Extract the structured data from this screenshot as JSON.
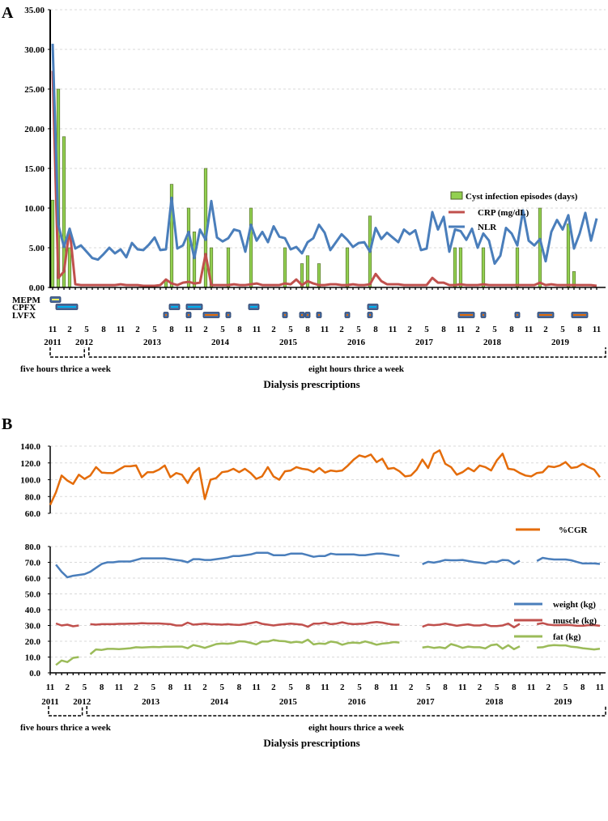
{
  "chart_data": [
    {
      "panel_label": "A",
      "type": "bar+line",
      "ylim": [
        0,
        35
      ],
      "yticks": [
        "0.00",
        "5.00",
        "10.00",
        "15.00",
        "20.00",
        "25.00",
        "30.00",
        "35.00"
      ],
      "x_start": "11/2011",
      "months": 97,
      "xtick_labels": [
        "11",
        "2",
        "5",
        "8",
        "11",
        "2",
        "5",
        "8",
        "11",
        "2",
        "5",
        "8",
        "11",
        "2",
        "5",
        "8",
        "11",
        "2",
        "5",
        "8",
        "11",
        "2",
        "5",
        "8",
        "11",
        "2",
        "5",
        "8",
        "11",
        "2",
        "5",
        "8",
        "11"
      ],
      "year_labels": [
        "2011",
        "2012",
        "2013",
        "2014",
        "2015",
        "2016",
        "2017",
        "2018",
        "2019"
      ],
      "legend": {
        "bars": "Cyst infection episodes (days)",
        "crp": "CRP (mg/dL)",
        "nlr": "NLR"
      },
      "colors": {
        "bars": "#92d050",
        "crp": "#c0504d",
        "nlr": "#4a7ebb"
      },
      "cyst_episodes": [
        [
          0,
          11
        ],
        [
          1,
          25
        ],
        [
          2,
          19
        ],
        [
          3,
          5
        ],
        [
          20,
          1
        ],
        [
          21,
          13
        ],
        [
          24,
          10
        ],
        [
          25,
          7
        ],
        [
          27,
          15
        ],
        [
          28,
          5
        ],
        [
          31,
          5
        ],
        [
          35,
          10
        ],
        [
          41,
          5
        ],
        [
          44,
          3
        ],
        [
          45,
          4
        ],
        [
          47,
          3
        ],
        [
          52,
          5
        ],
        [
          56,
          9
        ],
        [
          71,
          5
        ],
        [
          72,
          5
        ],
        [
          76,
          5
        ],
        [
          82,
          5
        ],
        [
          86,
          10
        ],
        [
          91,
          8
        ],
        [
          92,
          2
        ]
      ],
      "crp": [
        27.3,
        1.2,
        2.0,
        7.4,
        0.4,
        0.3,
        0.3,
        0.3,
        0.3,
        0.3,
        0.3,
        0.3,
        0.4,
        0.3,
        0.3,
        0.3,
        0.2,
        0.2,
        0.2,
        0.3,
        1.0,
        0.5,
        0.3,
        0.6,
        0.7,
        0.5,
        0.6,
        4.2,
        0.3,
        0.3,
        0.3,
        0.3,
        0.4,
        0.3,
        0.3,
        0.4,
        0.5,
        0.3,
        0.3,
        0.3,
        0.3,
        0.5,
        0.4,
        1.0,
        0.3,
        0.8,
        0.5,
        0.3,
        0.3,
        0.4,
        0.4,
        0.3,
        0.3,
        0.4,
        0.3,
        0.3,
        0.4,
        1.7,
        0.8,
        0.4,
        0.4,
        0.4,
        0.3,
        0.3,
        0.3,
        0.3,
        0.3,
        1.2,
        0.6,
        0.6,
        0.3,
        0.3,
        0.4,
        0.3,
        0.3,
        0.3,
        0.4,
        0.3,
        0.3,
        0.3,
        0.3,
        0.3,
        0.3,
        0.3,
        0.3,
        0.3,
        0.6,
        0.3,
        0.4,
        0.3,
        0.3,
        0.3,
        0.3,
        0.3,
        0.3,
        0.3,
        0.2
      ],
      "nlr": [
        30.7,
        7.9,
        5.1,
        7.4,
        4.9,
        5.3,
        4.5,
        3.7,
        3.5,
        4.2,
        5,
        4.3,
        4.8,
        3.8,
        5.6,
        4.8,
        4.7,
        5.4,
        6.3,
        4.7,
        4.8,
        11.3,
        4.9,
        5.3,
        7.0,
        3.7,
        7.3,
        6.0,
        10.9,
        6.3,
        5.8,
        6.2,
        7.3,
        7.1,
        4.5,
        7.9,
        5.9,
        7.0,
        5.7,
        7.7,
        6.4,
        6.2,
        4.8,
        5.1,
        4.3,
        5.7,
        6.2,
        7.9,
        6.9,
        4.7,
        5.7,
        6.7,
        6.0,
        5.1,
        5.6,
        5.7,
        4.5,
        7.5,
        6.1,
        6.9,
        6.3,
        5.7,
        7.3,
        6.7,
        7.2,
        4.7,
        4.9,
        9.5,
        7.3,
        8.9,
        4.5,
        7.3,
        7.1,
        6.0,
        7.4,
        5.0,
        6.8,
        5.9,
        3.0,
        4.0,
        7.5,
        6.8,
        5.3,
        9.7,
        5.9,
        5.3,
        6.1,
        3.3,
        7.0,
        8.5,
        7.3,
        9.1,
        4.9,
        6.8,
        9.4,
        5.9,
        8.7
      ],
      "treatments": {
        "labels": [
          "MEPM",
          "CPFX",
          "LVFX"
        ],
        "colors": [
          "#ffff66",
          "#00b0f0",
          "#e46c0a"
        ],
        "periods": [
          [
            0,
            0,
            1
          ],
          [
            1,
            1,
            4
          ],
          [
            1,
            21,
            22
          ],
          [
            1,
            24,
            26
          ],
          [
            1,
            35,
            36
          ],
          [
            1,
            56,
            57
          ],
          [
            2,
            20,
            20
          ],
          [
            2,
            24,
            24
          ],
          [
            2,
            27,
            29
          ],
          [
            2,
            31,
            31
          ],
          [
            2,
            41,
            41
          ],
          [
            2,
            44,
            44
          ],
          [
            2,
            45,
            45
          ],
          [
            2,
            47,
            47
          ],
          [
            2,
            52,
            52
          ],
          [
            2,
            56,
            56
          ],
          [
            2,
            72,
            74
          ],
          [
            2,
            76,
            76
          ],
          [
            2,
            82,
            82
          ],
          [
            2,
            86,
            88
          ],
          [
            2,
            92,
            94
          ]
        ]
      },
      "prescriptions": [
        "five hours thrice a week",
        "eight hours thrice a week"
      ],
      "xlabel": "Dialysis prescriptions"
    },
    {
      "panel_label": "B",
      "type": "line",
      "cgr": {
        "ylim": [
          60,
          140
        ],
        "yticks": [
          "60.0",
          "80.0",
          "100.0",
          "120.0",
          "140.0"
        ],
        "legend": "%CGR",
        "color": "#e46c0a",
        "values": [
          70,
          85,
          105,
          99,
          95,
          106,
          101,
          105,
          115,
          108.5,
          108,
          108,
          112,
          116,
          116,
          117,
          103,
          109,
          109,
          112,
          117,
          103,
          108,
          106,
          96,
          108,
          114,
          77,
          100,
          102,
          109,
          110,
          113,
          109,
          113,
          108,
          101,
          104,
          115,
          104,
          100,
          110,
          111,
          115,
          113,
          112,
          109,
          114,
          108.5,
          111,
          110,
          111,
          117,
          124,
          129,
          127,
          130,
          121,
          125,
          113,
          114,
          110,
          104,
          105,
          112,
          124,
          114,
          131,
          135,
          119,
          115,
          106,
          109,
          114,
          110,
          117,
          115,
          111,
          123,
          131,
          113,
          112,
          108,
          105,
          104,
          108,
          109,
          116,
          115,
          117,
          121,
          114,
          115,
          119,
          115,
          112,
          103
        ]
      },
      "body": {
        "ylim": [
          0,
          80
        ],
        "yticks": [
          "0.0",
          "10.0",
          "20.0",
          "30.0",
          "40.0",
          "50.0",
          "60.0",
          "70.0",
          "80.0"
        ],
        "series": [
          {
            "name": "weight (kg)",
            "color": "#4a7ebb",
            "values": [
              null,
              68.5,
              64,
              60.5,
              61.5,
              62,
              62.5,
              64,
              66.5,
              69,
              70,
              70,
              70.5,
              70.5,
              70.5,
              71.5,
              72.5,
              72.5,
              72.5,
              72.5,
              72.5,
              72,
              71.5,
              71,
              70,
              72,
              72,
              71.5,
              71.5,
              72,
              72.5,
              73,
              74,
              74,
              74.5,
              75,
              76,
              76,
              76,
              74.5,
              74.5,
              74.5,
              75.5,
              75.5,
              75.5,
              74.5,
              73.5,
              74,
              74,
              75.5,
              75,
              75,
              75,
              75,
              74.5,
              74.5,
              75,
              75.5,
              75.5,
              75,
              74.5,
              74,
              null,
              null,
              null,
              68.8,
              70.3,
              69.8,
              70.5,
              71.5,
              71.3,
              71.3,
              71.5,
              70.8,
              70.2,
              69.8,
              69.3,
              70.5,
              70.2,
              71.5,
              71.3,
              69,
              71,
              null,
              null,
              70.8,
              72.8,
              72.2,
              71.8,
              71.8,
              71.8,
              71.3,
              70.2,
              69.3,
              69.3,
              69.3,
              69
            ]
          },
          {
            "name": "muscle (kg)",
            "color": "#c0504d",
            "values": [
              null,
              31.3,
              30,
              30.5,
              29.5,
              30,
              null,
              30.8,
              30.5,
              30.8,
              30.8,
              30.8,
              31,
              31,
              31.2,
              31.2,
              31.5,
              31.3,
              31.3,
              31.3,
              31,
              30.8,
              30,
              30,
              31.8,
              30.5,
              30.8,
              31.2,
              30.8,
              30.7,
              30.5,
              30.8,
              30.5,
              30.3,
              30.8,
              31.5,
              32.2,
              31,
              30.5,
              30,
              30.5,
              30.8,
              31.2,
              30.8,
              30.5,
              29.2,
              31.2,
              31.2,
              31.8,
              30.8,
              31.2,
              32,
              31.2,
              30.8,
              31,
              31.2,
              31.8,
              32.2,
              31.8,
              31,
              30.5,
              30.5,
              null,
              null,
              null,
              29.2,
              30.5,
              30.2,
              30.5,
              31.2,
              30.5,
              29.8,
              30.3,
              30.7,
              30,
              30,
              30.6,
              29.6,
              29.6,
              30,
              31.2,
              28.8,
              31,
              null,
              null,
              30.8,
              31.5,
              30.5,
              30.2,
              30.2,
              30.3,
              30.2,
              29.8,
              29.8,
              30.2,
              30.2,
              29.8
            ]
          },
          {
            "name": "fat (kg)",
            "color": "#9bbb59",
            "values": [
              null,
              5,
              7.8,
              6.8,
              9.5,
              10,
              null,
              11.8,
              14.8,
              14.5,
              15.2,
              15.2,
              15,
              15.3,
              15.6,
              16.2,
              16,
              16.2,
              16.4,
              16.3,
              16.5,
              16.5,
              16.6,
              16.6,
              15.6,
              17.6,
              16.8,
              15.8,
              17,
              18.2,
              18.6,
              18.4,
              18.8,
              20,
              19.8,
              19,
              18,
              19.8,
              19.8,
              20.8,
              20.2,
              20,
              19.2,
              19.7,
              19.2,
              21,
              18,
              18.6,
              18.3,
              19.8,
              19.3,
              17.8,
              18.8,
              19.2,
              18.8,
              19.9,
              19,
              17.8,
              18.5,
              18.8,
              19.5,
              19.2,
              null,
              null,
              null,
              16,
              16.5,
              15.8,
              16.2,
              15.6,
              18.2,
              17.2,
              15.8,
              16.6,
              16.2,
              16.2,
              15.5,
              17.5,
              18,
              15.3,
              17.5,
              15,
              16.8,
              null,
              null,
              16,
              16.2,
              17.2,
              17.6,
              17.4,
              17.4,
              16.5,
              16.2,
              15.6,
              15.2,
              14.8,
              15.3
            ]
          }
        ]
      },
      "xtick_labels": [
        "11",
        "2",
        "5",
        "8",
        "11",
        "2",
        "5",
        "8",
        "11",
        "2",
        "5",
        "8",
        "11",
        "2",
        "5",
        "8",
        "11",
        "2",
        "5",
        "8",
        "11",
        "2",
        "5",
        "8",
        "11",
        "2",
        "5",
        "8",
        "11",
        "2",
        "5",
        "8",
        "11"
      ],
      "year_labels": [
        "2011",
        "2012",
        "2013",
        "2014",
        "2015",
        "2016",
        "2017",
        "2018",
        "2019"
      ],
      "prescriptions": [
        "five hours thrice a week",
        "eight hours thrice a week"
      ],
      "xlabel": "Dialysis prescriptions"
    }
  ]
}
